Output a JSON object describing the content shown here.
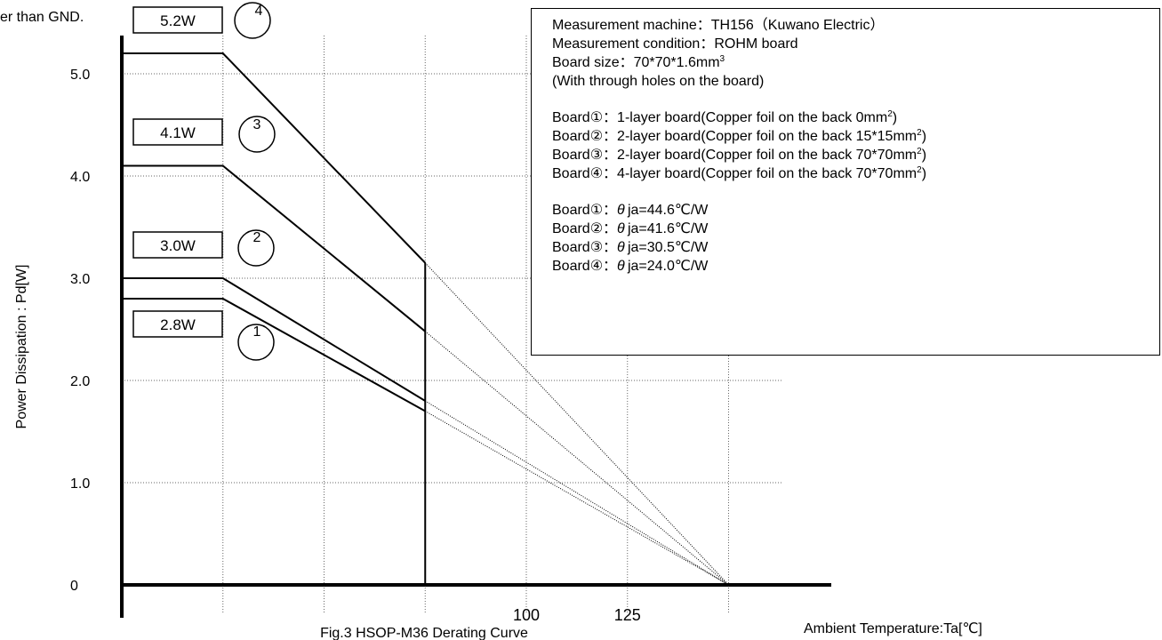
{
  "header_fragment": "er than GND.",
  "caption": "Fig.3 HSOP-M36 Derating Curve",
  "chart_data": {
    "type": "line",
    "title": "Fig.3 HSOP-M36 Derating Curve",
    "xlabel": "Ambient Temperature:Ta[℃]",
    "ylabel": "Power Dissipation : Pd[W]",
    "x_ticks": [
      {
        "value": 100,
        "label": "100"
      },
      {
        "value": 125,
        "label": "125"
      }
    ],
    "y_ticks": [
      {
        "value": 0,
        "label": "0"
      },
      {
        "value": 1.0,
        "label": "1.0"
      },
      {
        "value": 2.0,
        "label": "2.0"
      },
      {
        "value": 3.0,
        "label": "3.0"
      },
      {
        "value": 4.0,
        "label": "4.0"
      },
      {
        "value": 5.0,
        "label": "5.0"
      }
    ],
    "x_gridlines": [
      25,
      50,
      75,
      100,
      125,
      150
    ],
    "xlim": [
      0,
      175
    ],
    "ylim": [
      0,
      5.6
    ],
    "grid": "dotted",
    "cutoff_x": 75,
    "series": [
      {
        "name": "1",
        "label": "2.8W",
        "points": [
          [
            0,
            2.8
          ],
          [
            25,
            2.8
          ],
          [
            75,
            1.7
          ]
        ],
        "extrapolation": [
          [
            75,
            1.7
          ],
          [
            150,
            0
          ]
        ]
      },
      {
        "name": "2",
        "label": "3.0W",
        "points": [
          [
            0,
            3.0
          ],
          [
            25,
            3.0
          ],
          [
            75,
            1.8
          ]
        ],
        "extrapolation": [
          [
            75,
            1.8
          ],
          [
            150,
            0
          ]
        ]
      },
      {
        "name": "3",
        "label": "4.1W",
        "points": [
          [
            0,
            4.1
          ],
          [
            25,
            4.1
          ],
          [
            75,
            2.48
          ]
        ],
        "extrapolation": [
          [
            75,
            2.48
          ],
          [
            150,
            0
          ]
        ]
      },
      {
        "name": "4",
        "label": "5.2W",
        "points": [
          [
            0,
            5.2
          ],
          [
            25,
            5.2
          ],
          [
            75,
            3.15
          ]
        ],
        "extrapolation": [
          [
            75,
            3.15
          ],
          [
            150,
            0
          ]
        ]
      }
    ]
  },
  "legend": {
    "lines": [
      "Measurement machine：TH156（Kuwano Electric）",
      "Measurement condition：ROHM board",
      "Board size：70*70*1.6mm",
      "(With through holes on the board)"
    ],
    "board_size_sup": "3",
    "boards": [
      {
        "prefix": "Board①：1-layer board(Copper foil on the back 0mm",
        "sup": "2",
        "suffix": ")"
      },
      {
        "prefix": "Board②：2-layer board(Copper foil on the back 15*15mm",
        "sup": "2",
        "suffix": ")"
      },
      {
        "prefix": "Board③：2-layer board(Copper foil on the back 70*70mm",
        "sup": "2",
        "suffix": ")"
      },
      {
        "prefix": "Board④：4-layer board(Copper foil on the back 70*70mm",
        "sup": "2",
        "suffix": ")"
      }
    ],
    "theta": [
      {
        "prefix": "Board①：",
        "symbol": "θ",
        "value": "ja=44.6℃/W"
      },
      {
        "prefix": "Board②：",
        "symbol": "θ",
        "value": "ja=41.6℃/W"
      },
      {
        "prefix": "Board③：",
        "symbol": "θ",
        "value": "ja=30.5℃/W"
      },
      {
        "prefix": "Board④：",
        "symbol": "θ",
        "value": "ja=24.0℃/W"
      }
    ]
  }
}
